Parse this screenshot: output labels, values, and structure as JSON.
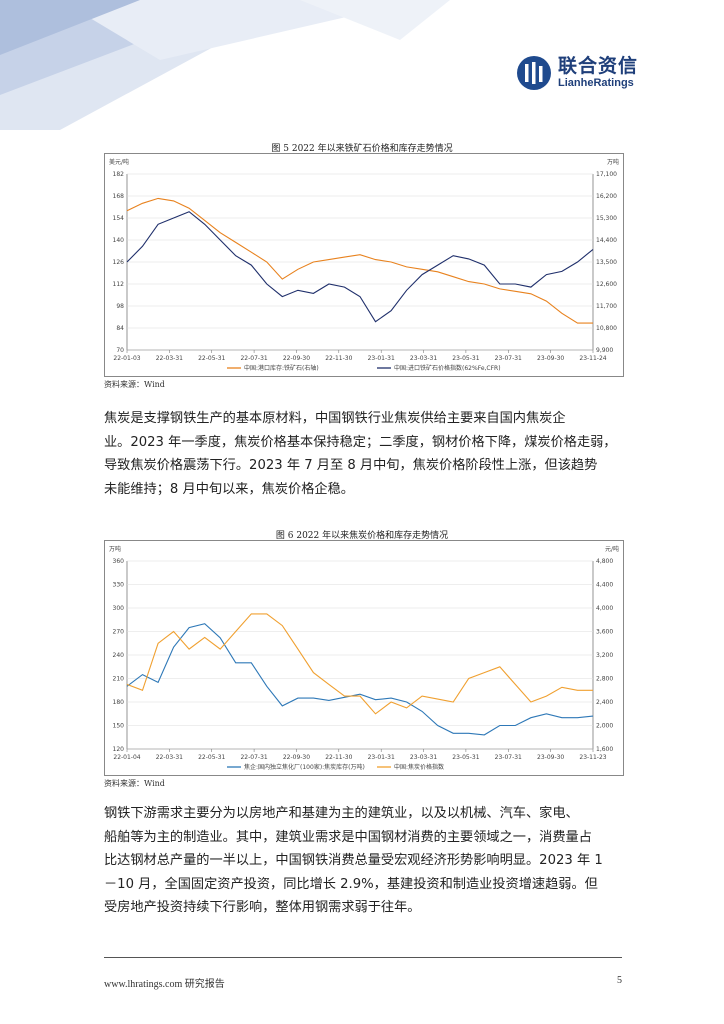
{
  "header": {
    "logo_cn": "联合资信",
    "logo_en": "LianheRatings"
  },
  "figure5": {
    "caption": "图 5    2022 年以来铁矿石价格和库存走势情况",
    "source": "资料来源：Wind",
    "chart_data": {
      "type": "line",
      "title": "",
      "ylabel_left": "美元/吨",
      "ylabel_right": "万吨",
      "x_ticks": [
        "22-01-03",
        "22-03-31",
        "22-05-31",
        "22-07-31",
        "22-09-30",
        "22-11-30",
        "23-01-31",
        "23-03-31",
        "23-05-31",
        "23-07-31",
        "23-09-30",
        "23-11-24"
      ],
      "y_left_ticks": [
        70,
        84,
        98,
        112,
        126,
        140,
        154,
        168,
        182
      ],
      "y_right_ticks": [
        "9,900",
        "10,800",
        "11,700",
        "12,600",
        "13,500",
        "14,400",
        "15,300",
        "16,200",
        "17,100"
      ],
      "ylim_left": [
        70,
        182
      ],
      "ylim_right": [
        9900,
        17100
      ],
      "colors": {
        "price": "#1f2f6b",
        "inventory": "#e8821e"
      },
      "series": [
        {
          "name": "中国:港口库存:铁矿石(右轴)",
          "axis": "right",
          "color": "#e8821e",
          "values": [
            15600,
            15900,
            16100,
            16000,
            15700,
            15200,
            14700,
            14300,
            13900,
            13500,
            12800,
            13200,
            13500,
            13600,
            13700,
            13800,
            13600,
            13500,
            13300,
            13200,
            13100,
            12900,
            12700,
            12600,
            12400,
            12300,
            12200,
            11900,
            11400,
            11000,
            11000
          ]
        },
        {
          "name": "中国:进口铁矿石价格指数(62%Fe,CFR)",
          "axis": "left",
          "color": "#1f2f6b",
          "values": [
            126,
            136,
            150,
            154,
            158,
            150,
            140,
            130,
            124,
            112,
            104,
            108,
            106,
            112,
            110,
            104,
            88,
            95,
            108,
            118,
            124,
            130,
            128,
            124,
            112,
            112,
            110,
            118,
            120,
            126,
            134
          ]
        }
      ]
    }
  },
  "para1": [
    "焦炭是支撑钢铁生产的基本原材料，中国钢铁行业焦炭供给主要来自国内焦炭企",
    "业。2023 年一季度，焦炭价格基本保持稳定；二季度，钢材价格下降，煤炭价格走弱，",
    "导致焦炭价格震荡下行。2023 年 7 月至 8 月中旬，焦炭价格阶段性上涨，但该趋势",
    "未能维持；8 月中旬以来，焦炭价格企稳。"
  ],
  "figure6": {
    "caption": "图 6    2022 年以来焦炭价格和库存走势情况",
    "source": "资料来源：Wind",
    "chart_data": {
      "type": "line",
      "title": "",
      "ylabel_left": "万吨",
      "ylabel_right": "元/吨",
      "x_ticks": [
        "22-01-04",
        "22-03-31",
        "22-05-31",
        "22-07-31",
        "22-09-30",
        "22-11-30",
        "23-01-31",
        "23-03-31",
        "23-05-31",
        "23-07-31",
        "23-09-30",
        "23-11-23"
      ],
      "y_left_ticks": [
        120,
        150,
        180,
        210,
        240,
        270,
        300,
        330,
        360
      ],
      "y_right_ticks": [
        "1,600",
        "2,000",
        "2,400",
        "2,800",
        "3,200",
        "3,600",
        "4,000",
        "4,400",
        "4,800"
      ],
      "ylim_left": [
        120,
        360
      ],
      "ylim_right": [
        1600,
        4800
      ],
      "colors": {
        "inventory": "#2e78b7",
        "price": "#f0a030"
      },
      "series": [
        {
          "name": "焦企:国内独立焦化厂(100家):焦炭库存(万吨)",
          "axis": "left",
          "color": "#2e78b7",
          "values": [
            200,
            215,
            205,
            250,
            275,
            280,
            262,
            230,
            230,
            200,
            175,
            185,
            185,
            182,
            186,
            190,
            183,
            185,
            180,
            168,
            150,
            140,
            140,
            138,
            150,
            150,
            160,
            165,
            160,
            160,
            162
          ]
        },
        {
          "name": "中国:焦炭价格指数",
          "axis": "right",
          "color": "#f0a030",
          "values": [
            2700,
            2600,
            3400,
            3600,
            3300,
            3500,
            3300,
            3600,
            3900,
            3900,
            3700,
            3300,
            2900,
            2700,
            2500,
            2500,
            2200,
            2400,
            2300,
            2500,
            2450,
            2400,
            2800,
            2900,
            3000,
            2700,
            2400,
            2500,
            2650,
            2600,
            2600
          ]
        }
      ]
    }
  },
  "para2": [
    "钢铁下游需求主要分为以房地产和基建为主的建筑业，以及以机械、汽车、家电、",
    "船舶等为主的制造业。其中，建筑业需求是中国钢材消费的主要领域之一，消费量占",
    "比达钢材总产量的一半以上，中国钢铁消费总量受宏观经济形势影响明显。2023 年 1",
    "－10 月，全国固定资产投资，同比增长 2.9%，基建投资和制造业投资增速趋弱。但",
    "受房地产投资持续下行影响，整体用钢需求弱于往年。"
  ],
  "footer": {
    "left": "www.lhratings.com    研究报告",
    "page": "5"
  }
}
